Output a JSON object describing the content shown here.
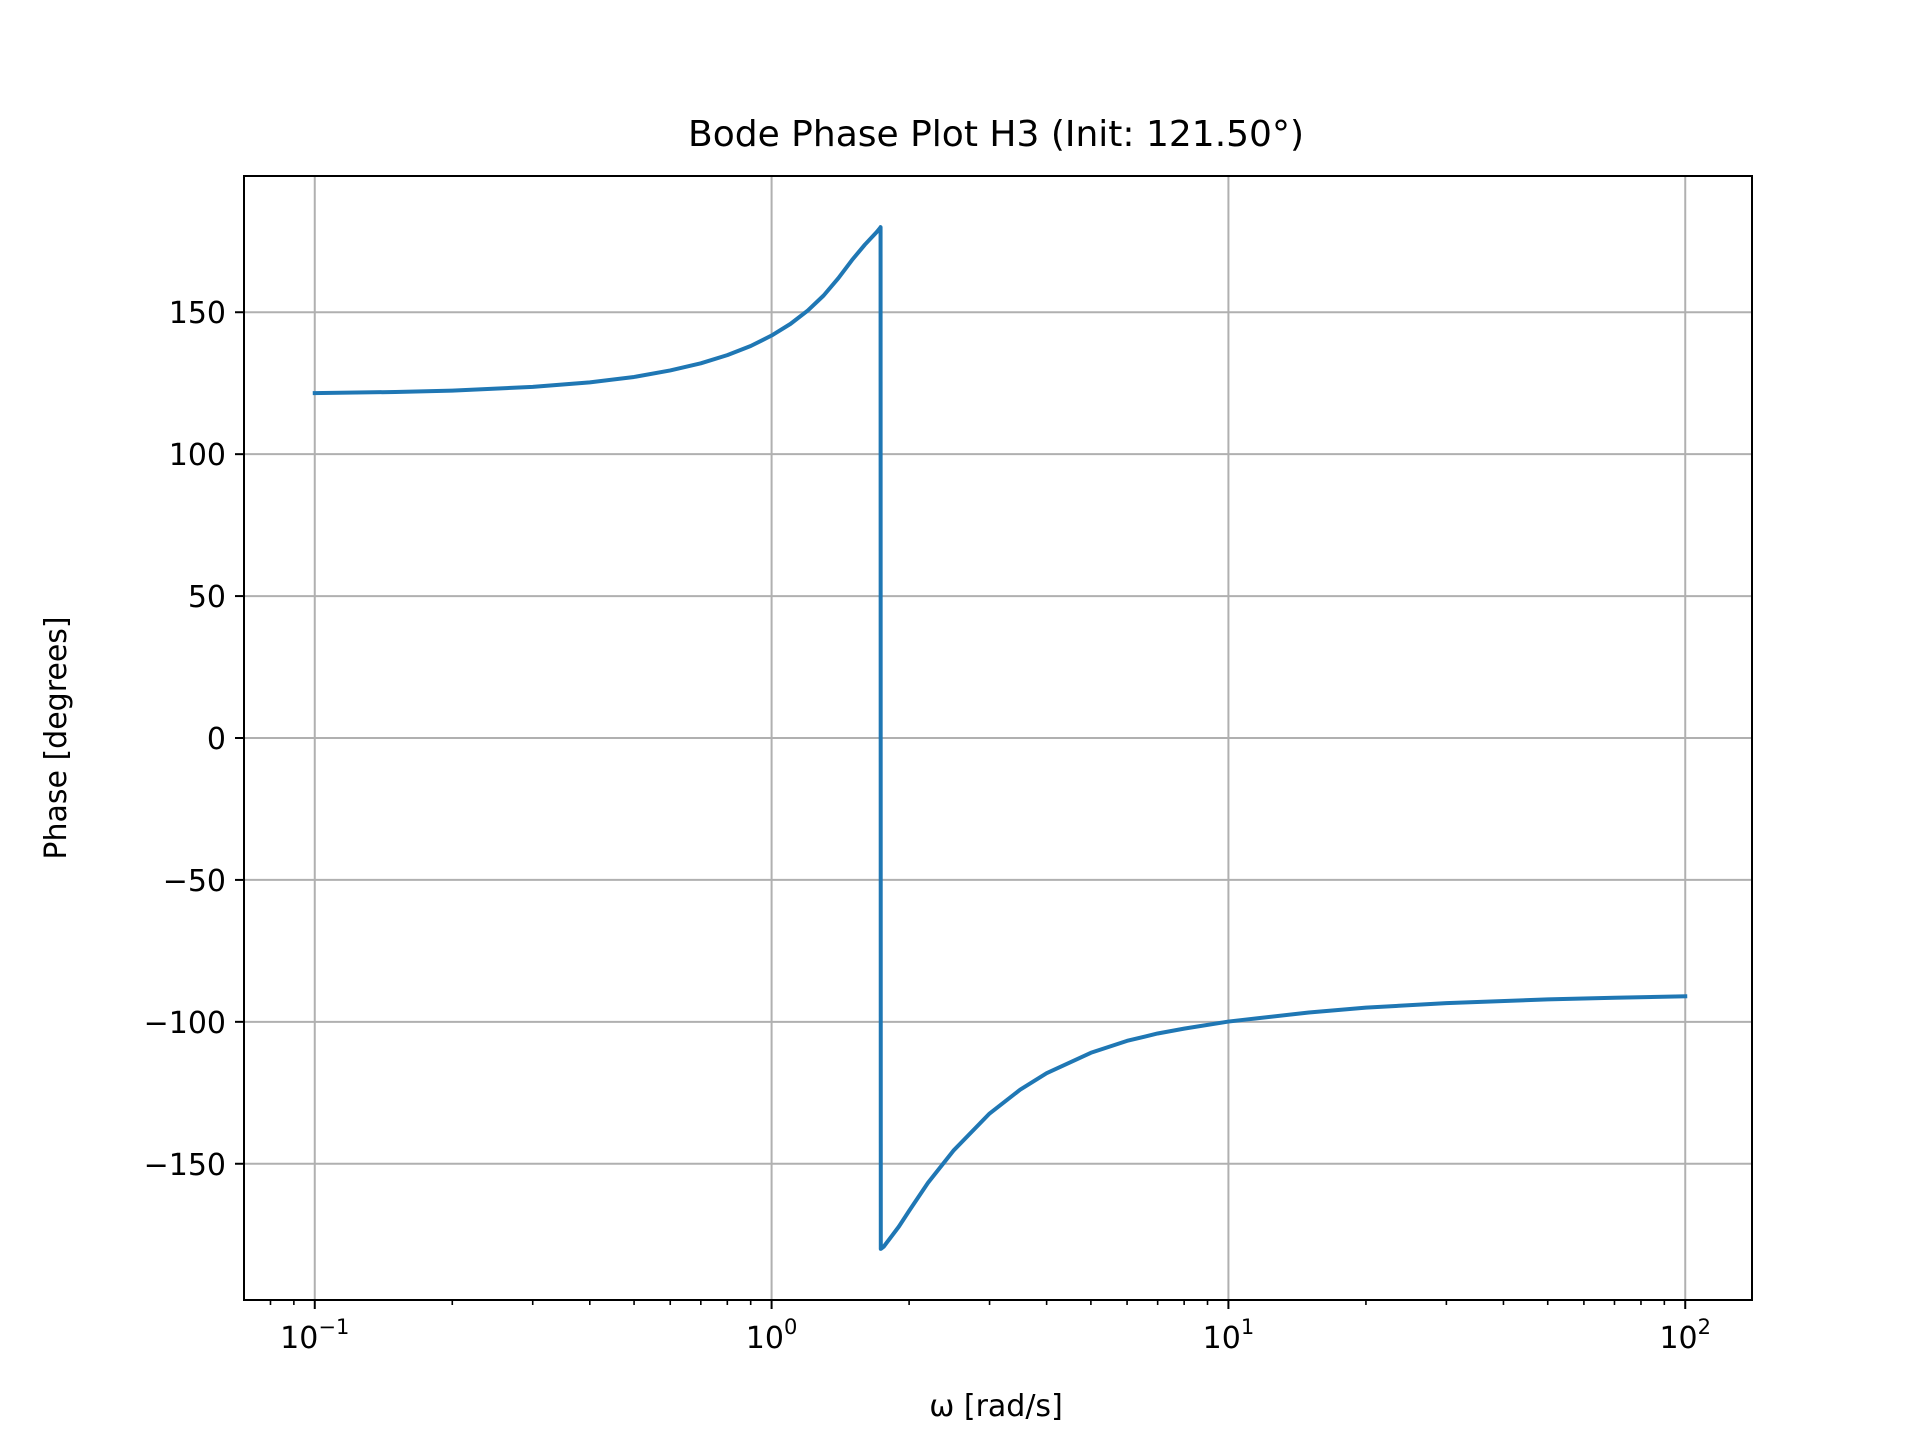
{
  "chart_data": {
    "type": "line",
    "title": "Bode Phase Plot H3 (Init: 121.50°)",
    "xlabel": "ω [rad/s]",
    "ylabel": "Phase [degrees]",
    "x_scale": "log",
    "xlim": [
      0.07,
      140
    ],
    "ylim": [
      -198,
      198
    ],
    "grid": true,
    "line_color": "#1f77b4",
    "x_ticks": [
      {
        "value": 0.1,
        "base": "10",
        "exp": "−1"
      },
      {
        "value": 1,
        "base": "10",
        "exp": "0"
      },
      {
        "value": 10,
        "base": "10",
        "exp": "1"
      },
      {
        "value": 100,
        "base": "10",
        "exp": "2"
      }
    ],
    "y_ticks": [
      {
        "value": 150,
        "label": "150"
      },
      {
        "value": 100,
        "label": "100"
      },
      {
        "value": 50,
        "label": "50"
      },
      {
        "value": 0,
        "label": "0"
      },
      {
        "value": -50,
        "label": "−50"
      },
      {
        "value": -100,
        "label": "−100"
      },
      {
        "value": -150,
        "label": "−150"
      }
    ],
    "series": [
      {
        "x": [
          0.1,
          0.15,
          0.2,
          0.3,
          0.4,
          0.5,
          0.6,
          0.7,
          0.8,
          0.9,
          1.0,
          1.1,
          1.2,
          1.3,
          1.4,
          1.5,
          1.6,
          1.7,
          1.73,
          1.732,
          1.734,
          1.76,
          1.9,
          2.0,
          2.2,
          2.5,
          3,
          3.5,
          4,
          5,
          6,
          7,
          8,
          10,
          15,
          20,
          30,
          50,
          70,
          100
        ],
        "y": [
          121.5,
          121.9,
          122.4,
          123.7,
          125.3,
          127.2,
          129.5,
          132.0,
          134.9,
          138.1,
          141.8,
          145.9,
          150.6,
          155.9,
          162.0,
          168.4,
          173.8,
          178.3,
          179.8,
          180,
          -180,
          -179.2,
          -172.1,
          -166.6,
          -156.7,
          -145.4,
          -132.3,
          -123.9,
          -118.1,
          -110.9,
          -106.7,
          -104.1,
          -102.4,
          -99.9,
          -96.7,
          -95.0,
          -93.4,
          -92.1,
          -91.5,
          -91.0
        ]
      }
    ]
  }
}
